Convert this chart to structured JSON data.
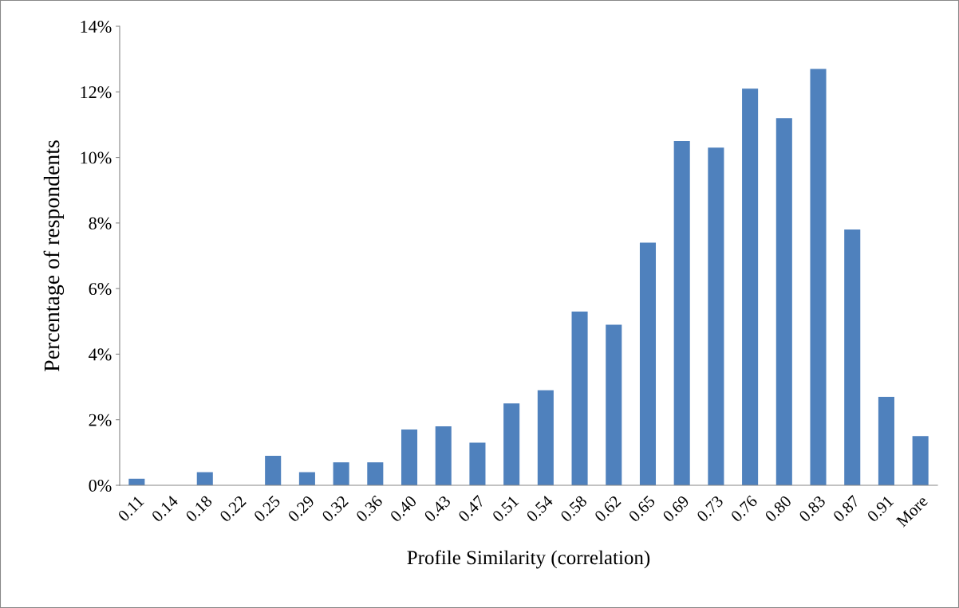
{
  "chart_data": {
    "type": "bar",
    "xlabel": "Profile Similarity (correlation)",
    "ylabel": "Percentage of respondents",
    "categories": [
      "0.11",
      "0.14",
      "0.18",
      "0.22",
      "0.25",
      "0.29",
      "0.32",
      "0.36",
      "0.40",
      "0.43",
      "0.47",
      "0.51",
      "0.54",
      "0.58",
      "0.62",
      "0.65",
      "0.69",
      "0.73",
      "0.76",
      "0.80",
      "0.83",
      "0.87",
      "0.91",
      "More"
    ],
    "values": [
      0.2,
      0,
      0.4,
      0,
      0.9,
      0.4,
      0.7,
      0.7,
      1.7,
      1.8,
      1.3,
      2.5,
      2.9,
      5.3,
      4.9,
      7.4,
      10.5,
      10.3,
      12.1,
      11.2,
      12.7,
      7.8,
      2.7,
      1.5
    ],
    "color": "#4f81bd",
    "ylim": [
      0,
      14
    ],
    "yticks": [
      {
        "value": 0,
        "label": "0%"
      },
      {
        "value": 2,
        "label": "2%"
      },
      {
        "value": 4,
        "label": "4%"
      },
      {
        "value": 6,
        "label": "6%"
      },
      {
        "value": 8,
        "label": "8%"
      },
      {
        "value": 10,
        "label": "10%"
      },
      {
        "value": 12,
        "label": "12%"
      },
      {
        "value": 14,
        "label": "14%"
      }
    ],
    "grid": false,
    "legend": false
  }
}
